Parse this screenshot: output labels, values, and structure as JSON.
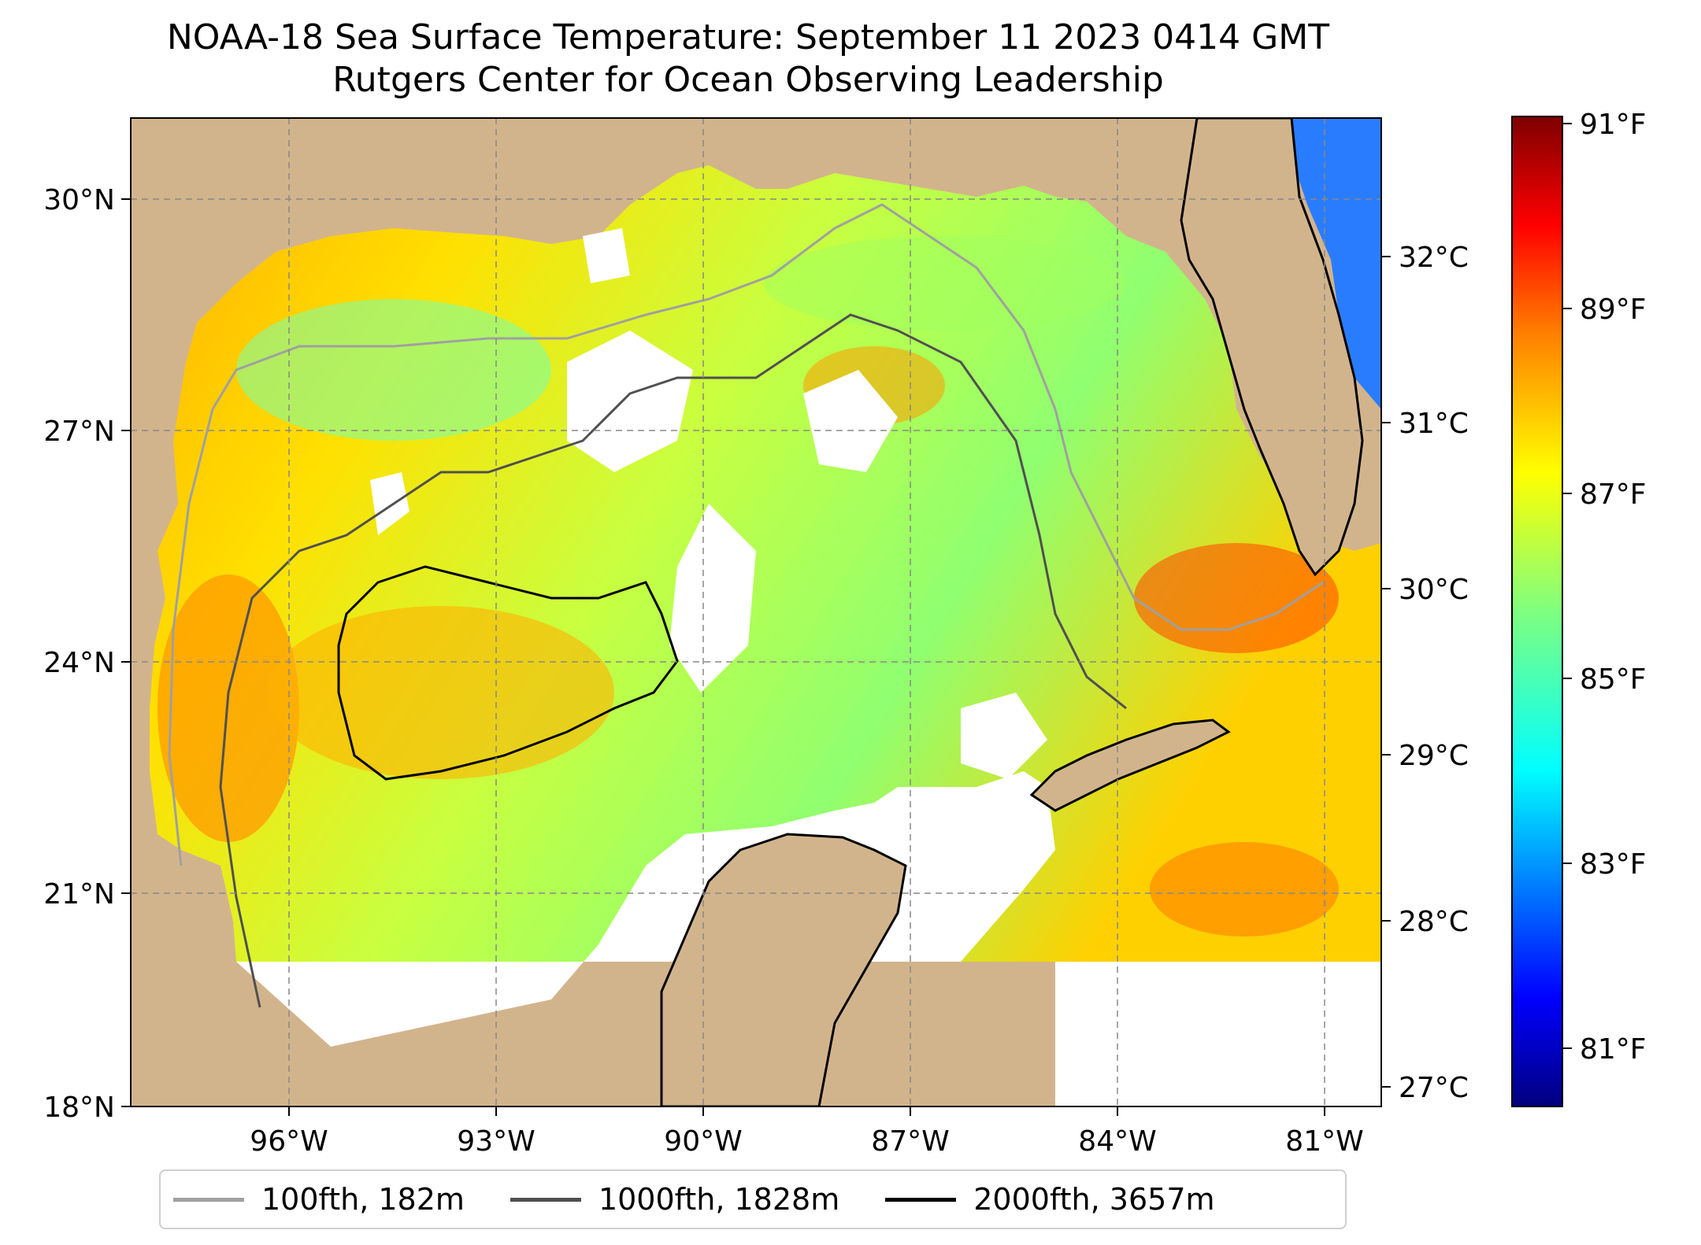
{
  "title": {
    "line1": "NOAA-18 Sea Surface Temperature: September 11 2023 0414 GMT",
    "line2": "Rutgers Center for Ocean Observing Leadership"
  },
  "map": {
    "lon_ticks": [
      "96°W",
      "93°W",
      "90°W",
      "87°W",
      "84°W",
      "81°W"
    ],
    "lat_ticks": [
      "30°N",
      "27°N",
      "24°N",
      "21°N",
      "18°N"
    ],
    "land_color": "#d2b48c",
    "nodata_color": "#ffffff",
    "gridlines": "dashed"
  },
  "colorbar": {
    "f_ticks": [
      "91°F",
      "89°F",
      "87°F",
      "85°F",
      "83°F",
      "81°F"
    ],
    "c_ticks": [
      "32°C",
      "31°C",
      "30°C",
      "29°C",
      "28°C",
      "27°C"
    ],
    "colormap": "jet",
    "colors": [
      "#00007f",
      "#0000ff",
      "#007fff",
      "#00ffff",
      "#7fff7f",
      "#ffff00",
      "#ff7f00",
      "#ff0000",
      "#7f0000"
    ]
  },
  "legend": {
    "items": [
      {
        "label": "100fth, 182m",
        "color": "#a0a0a0"
      },
      {
        "label": "1000fth, 1828m",
        "color": "#505050"
      },
      {
        "label": "2000fth, 3657m",
        "color": "#000000"
      }
    ]
  }
}
